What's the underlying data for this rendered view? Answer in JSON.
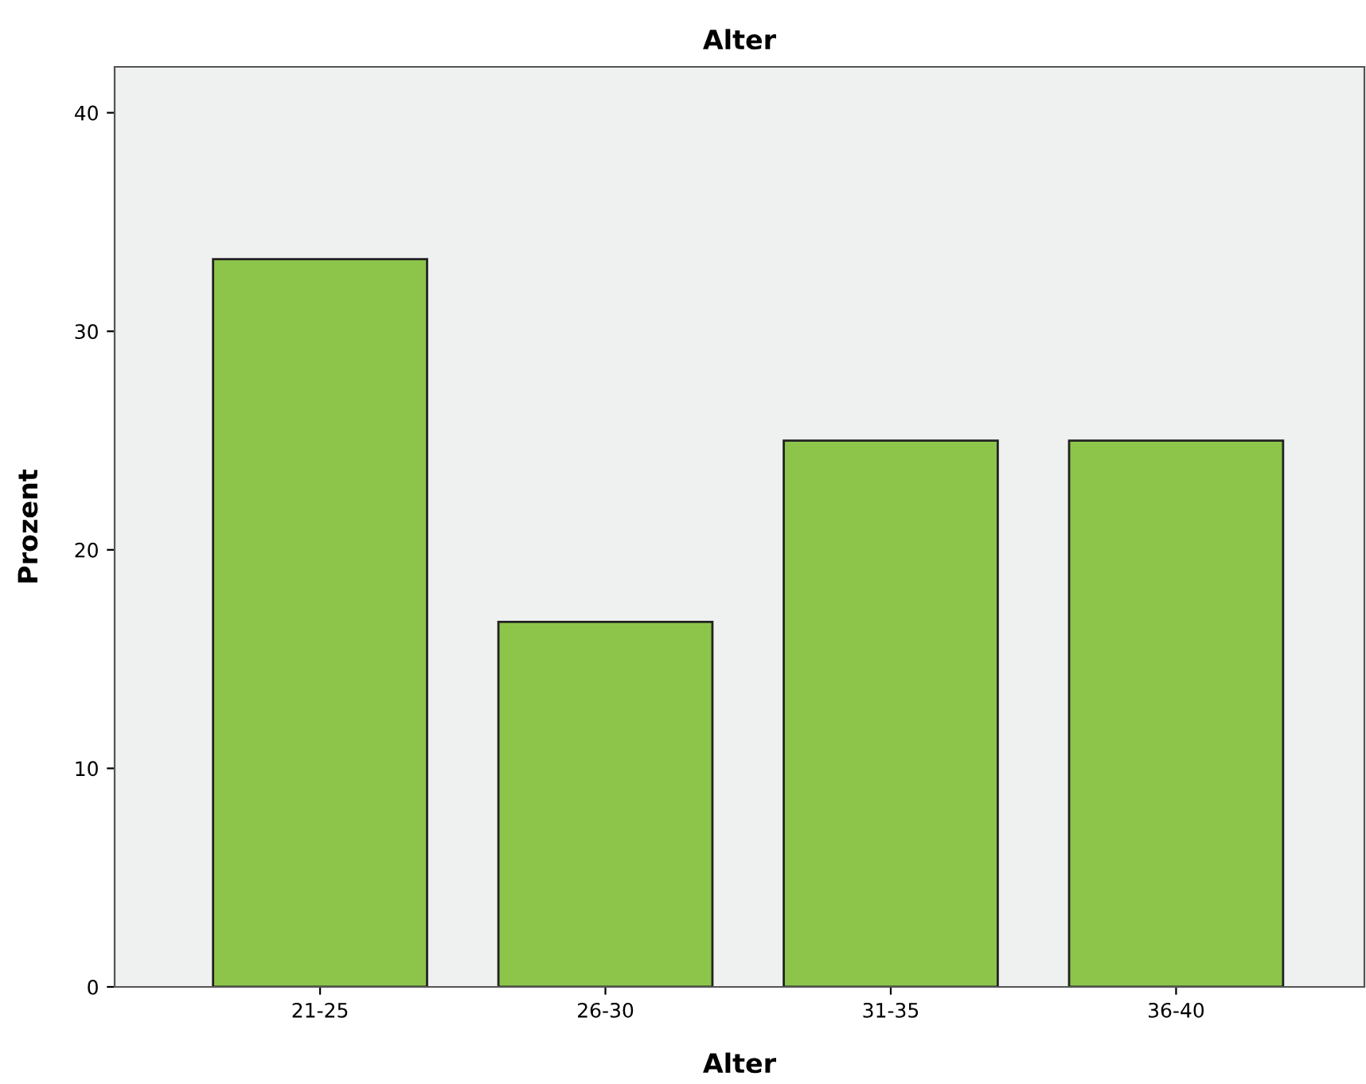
{
  "chart_data": {
    "type": "bar",
    "title": "Alter",
    "xlabel": "Alter",
    "ylabel": "Prozent",
    "categories": [
      "21-25",
      "26-30",
      "31-35",
      "36-40"
    ],
    "values": [
      33.3,
      16.7,
      25,
      25
    ],
    "color": "#8dc54b",
    "ylim": [
      0,
      42.1
    ],
    "yticks": [
      0,
      10,
      20,
      30,
      40
    ],
    "grid": false,
    "legend": false
  }
}
